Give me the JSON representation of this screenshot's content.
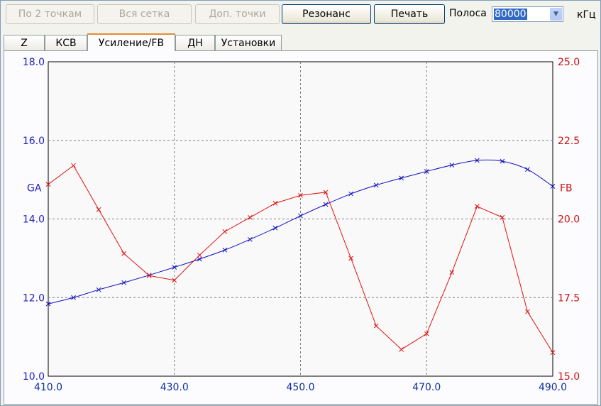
{
  "toolbar": {
    "btn_two_points": "По 2 точкам",
    "btn_whole_grid": "Вся сетка",
    "btn_extra_points": "Доп. точки",
    "btn_resonance": "Резонанс",
    "btn_print": "Печать",
    "band_label": "Полоса",
    "band_value": "80000",
    "band_unit": "кГц"
  },
  "tabs": [
    "Z",
    "КСВ",
    "Усиление/FB",
    "ДН",
    "Установки"
  ],
  "active_tab": "Усиление/FB",
  "colors": {
    "ga": "#1010c0",
    "fb": "#e01010",
    "grid": "#808080"
  },
  "chart_data": {
    "type": "line",
    "xlim": [
      410,
      490
    ],
    "x_ticks": [
      "410.0",
      "430.0",
      "450.0",
      "470.0",
      "490.0"
    ],
    "left_axis": {
      "label": "GA",
      "ylim": [
        10,
        18
      ],
      "ticks": [
        "10.0",
        "12.0",
        "14.0",
        "16.0",
        "18.0"
      ]
    },
    "right_axis": {
      "label": "FB",
      "ylim": [
        15,
        25
      ],
      "ticks": [
        "15.0",
        "17.5",
        "20.0",
        "22.5",
        "25.0"
      ]
    },
    "grid": true,
    "series": [
      {
        "name": "GA",
        "axis": "left",
        "x": [
          410,
          414,
          418,
          422,
          426,
          430,
          434,
          438,
          442,
          446,
          450,
          454,
          458,
          462,
          466,
          470,
          474,
          478,
          482,
          486,
          490
        ],
        "values": [
          11.84,
          12.0,
          12.2,
          12.38,
          12.57,
          12.77,
          12.98,
          13.21,
          13.48,
          13.77,
          14.08,
          14.37,
          14.64,
          14.86,
          15.04,
          15.21,
          15.37,
          15.49,
          15.47,
          15.26,
          14.83
        ]
      },
      {
        "name": "FB",
        "axis": "right",
        "x": [
          410,
          414,
          418,
          422,
          426,
          430,
          434,
          438,
          442,
          446,
          450,
          454,
          458,
          462,
          466,
          470,
          474,
          478,
          482,
          486,
          490
        ],
        "values": [
          21.1,
          21.7,
          20.3,
          18.9,
          18.2,
          18.05,
          18.85,
          19.6,
          20.05,
          20.5,
          20.75,
          20.85,
          18.75,
          16.6,
          15.85,
          16.35,
          18.3,
          20.4,
          20.05,
          17.05,
          15.75
        ]
      }
    ]
  }
}
